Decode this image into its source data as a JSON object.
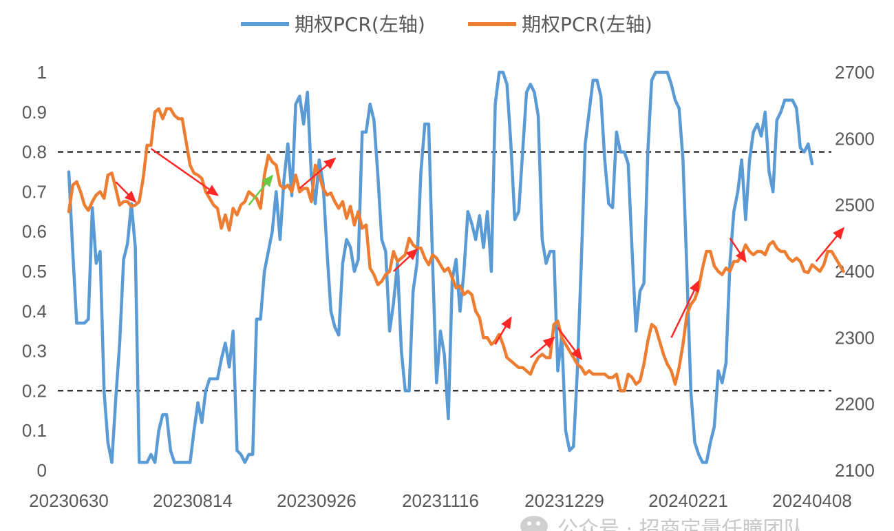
{
  "chart_data": {
    "type": "line",
    "legend": {
      "placement": "top-center",
      "items": [
        {
          "label": "期权PCR(左轴)",
          "color": "#5B9BD5"
        },
        {
          "label": "期权PCR(左轴)",
          "color": "#ED7D31"
        }
      ]
    },
    "x_tick_labels": [
      "20230630",
      "20230814",
      "20230926",
      "20231116",
      "20231229",
      "20240221",
      "20240408"
    ],
    "y_left": {
      "ticks": [
        "0",
        "0.1",
        "0.2",
        "0.3",
        "0.4",
        "0.5",
        "0.6",
        "0.7",
        "0.8",
        "0.9",
        "1"
      ],
      "lim": [
        0,
        1
      ]
    },
    "y_right": {
      "ticks": [
        "2100",
        "2200",
        "2300",
        "2400",
        "2500",
        "2600",
        "2700"
      ],
      "lim": [
        2100,
        2700
      ]
    },
    "reference_lines_left_axis": [
      0.8,
      0.2
    ],
    "grid": false,
    "series": [
      {
        "color": "#5B9BD5",
        "axis": "left",
        "values": [
          0.75,
          0.55,
          0.37,
          0.37,
          0.37,
          0.38,
          0.66,
          0.52,
          0.55,
          0.2,
          0.07,
          0.02,
          0.18,
          0.32,
          0.53,
          0.57,
          0.67,
          0.56,
          0.02,
          0.02,
          0.02,
          0.04,
          0.02,
          0.1,
          0.14,
          0.14,
          0.05,
          0.02,
          0.02,
          0.02,
          0.02,
          0.02,
          0.1,
          0.17,
          0.12,
          0.2,
          0.23,
          0.23,
          0.23,
          0.28,
          0.32,
          0.26,
          0.35,
          0.05,
          0.04,
          0.02,
          0.04,
          0.04,
          0.38,
          0.38,
          0.5,
          0.55,
          0.6,
          0.7,
          0.58,
          0.73,
          0.82,
          0.69,
          0.92,
          0.94,
          0.87,
          0.95,
          0.74,
          0.67,
          0.78,
          0.72,
          0.55,
          0.4,
          0.36,
          0.34,
          0.52,
          0.58,
          0.56,
          0.5,
          0.53,
          0.85,
          0.85,
          0.92,
          0.88,
          0.74,
          0.58,
          0.55,
          0.35,
          0.42,
          0.52,
          0.3,
          0.2,
          0.2,
          0.45,
          0.52,
          0.75,
          0.87,
          0.87,
          0.52,
          0.22,
          0.35,
          0.29,
          0.13,
          0.48,
          0.53,
          0.4,
          0.5,
          0.65,
          0.62,
          0.58,
          0.64,
          0.56,
          0.65,
          0.5,
          0.92,
          1.0,
          1.0,
          0.97,
          0.82,
          0.63,
          0.65,
          0.8,
          0.95,
          0.97,
          0.95,
          0.89,
          0.58,
          0.52,
          0.55,
          0.55,
          0.25,
          0.34,
          0.1,
          0.05,
          0.06,
          0.25,
          0.52,
          0.82,
          0.9,
          0.98,
          0.98,
          0.94,
          0.78,
          0.67,
          0.66,
          0.85,
          0.8,
          0.8,
          0.77,
          0.55,
          0.35,
          0.45,
          0.47,
          0.8,
          0.98,
          1.0,
          1.0,
          1.0,
          1.0,
          0.97,
          0.93,
          0.91,
          0.78,
          0.5,
          0.2,
          0.07,
          0.04,
          0.02,
          0.02,
          0.07,
          0.11,
          0.25,
          0.22,
          0.27,
          0.52,
          0.65,
          0.7,
          0.78,
          0.63,
          0.78,
          0.85,
          0.87,
          0.84,
          0.9,
          0.75,
          0.7,
          0.88,
          0.9,
          0.93,
          0.93,
          0.93,
          0.91,
          0.81,
          0.8,
          0.82,
          0.77
        ]
      },
      {
        "color": "#ED7D31",
        "axis": "right",
        "values": [
          2490,
          2530,
          2535,
          2520,
          2500,
          2492,
          2505,
          2515,
          2520,
          2510,
          2545,
          2548,
          2525,
          2500,
          2505,
          2505,
          2498,
          2500,
          2505,
          2540,
          2590,
          2590,
          2640,
          2645,
          2630,
          2645,
          2645,
          2635,
          2630,
          2630,
          2595,
          2560,
          2548,
          2545,
          2540,
          2520,
          2510,
          2500,
          2495,
          2465,
          2485,
          2462,
          2495,
          2485,
          2500,
          2505,
          2520,
          2515,
          2510,
          2495,
          2545,
          2575,
          2565,
          2560,
          2530,
          2525,
          2530,
          2520,
          2545,
          2520,
          2525,
          2525,
          2505,
          2560,
          2545,
          2525,
          2515,
          2518,
          2505,
          2495,
          2505,
          2480,
          2498,
          2470,
          2490,
          2465,
          2470,
          2405,
          2395,
          2380,
          2385,
          2395,
          2400,
          2430,
          2415,
          2420,
          2425,
          2450,
          2440,
          2435,
          2435,
          2420,
          2410,
          2425,
          2420,
          2410,
          2400,
          2405,
          2390,
          2375,
          2378,
          2365,
          2370,
          2365,
          2340,
          2330,
          2300,
          2300,
          2290,
          2295,
          2305,
          2290,
          2270,
          2265,
          2260,
          2255,
          2255,
          2250,
          2245,
          2260,
          2270,
          2275,
          2270,
          2270,
          2320,
          2325,
          2300,
          2290,
          2280,
          2270,
          2260,
          2255,
          2245,
          2250,
          2245,
          2245,
          2245,
          2245,
          2240,
          2240,
          2245,
          2220,
          2220,
          2245,
          2240,
          2230,
          2235,
          2260,
          2295,
          2320,
          2315,
          2295,
          2275,
          2260,
          2250,
          2230,
          2255,
          2290,
          2335,
          2350,
          2358,
          2375,
          2405,
          2430,
          2430,
          2408,
          2400,
          2395,
          2405,
          2400,
          2415,
          2415,
          2425,
          2440,
          2430,
          2425,
          2430,
          2430,
          2425,
          2440,
          2445,
          2435,
          2430,
          2430,
          2420,
          2415,
          2420,
          2415,
          2400,
          2398,
          2410,
          2405,
          2400,
          2410,
          2430,
          2430,
          2420,
          2410,
          2400
        ]
      }
    ],
    "annotations": [
      {
        "type": "arrow",
        "color": "#FF2626",
        "from": [
          12,
          2535
        ],
        "to": [
          17,
          2505
        ]
      },
      {
        "type": "arrow",
        "color": "#FF2626",
        "from": [
          21,
          2585
        ],
        "to": [
          38,
          2515
        ]
      },
      {
        "type": "arrow",
        "color": "#66CC44",
        "from": [
          46,
          2500
        ],
        "to": [
          52,
          2544
        ]
      },
      {
        "type": "arrow",
        "color": "#FF2626",
        "from": [
          59,
          2525
        ],
        "to": [
          68,
          2570
        ]
      },
      {
        "type": "arrow",
        "color": "#FF2626",
        "from": [
          83,
          2400
        ],
        "to": [
          89,
          2433
        ]
      },
      {
        "type": "arrow",
        "color": "#FF2626",
        "from": [
          109,
          2290
        ],
        "to": [
          113,
          2330
        ]
      },
      {
        "type": "arrow",
        "color": "#FF2626",
        "from": [
          118,
          2270
        ],
        "to": [
          124,
          2300
        ]
      },
      {
        "type": "arrow",
        "color": "#FF2626",
        "from": [
          125,
          2315
        ],
        "to": [
          131,
          2268
        ]
      },
      {
        "type": "arrow",
        "color": "#FF2626",
        "from": [
          154,
          2300
        ],
        "to": [
          161,
          2385
        ]
      },
      {
        "type": "arrow",
        "color": "#FF2626",
        "from": [
          169,
          2450
        ],
        "to": [
          173,
          2415
        ]
      },
      {
        "type": "arrow",
        "color": "#FF2626",
        "from": [
          191,
          2415
        ],
        "to": [
          198,
          2465
        ]
      }
    ]
  },
  "watermark": {
    "text": "公众号 · 招商定量任瞳团队",
    "icon": "wechat-icon"
  }
}
